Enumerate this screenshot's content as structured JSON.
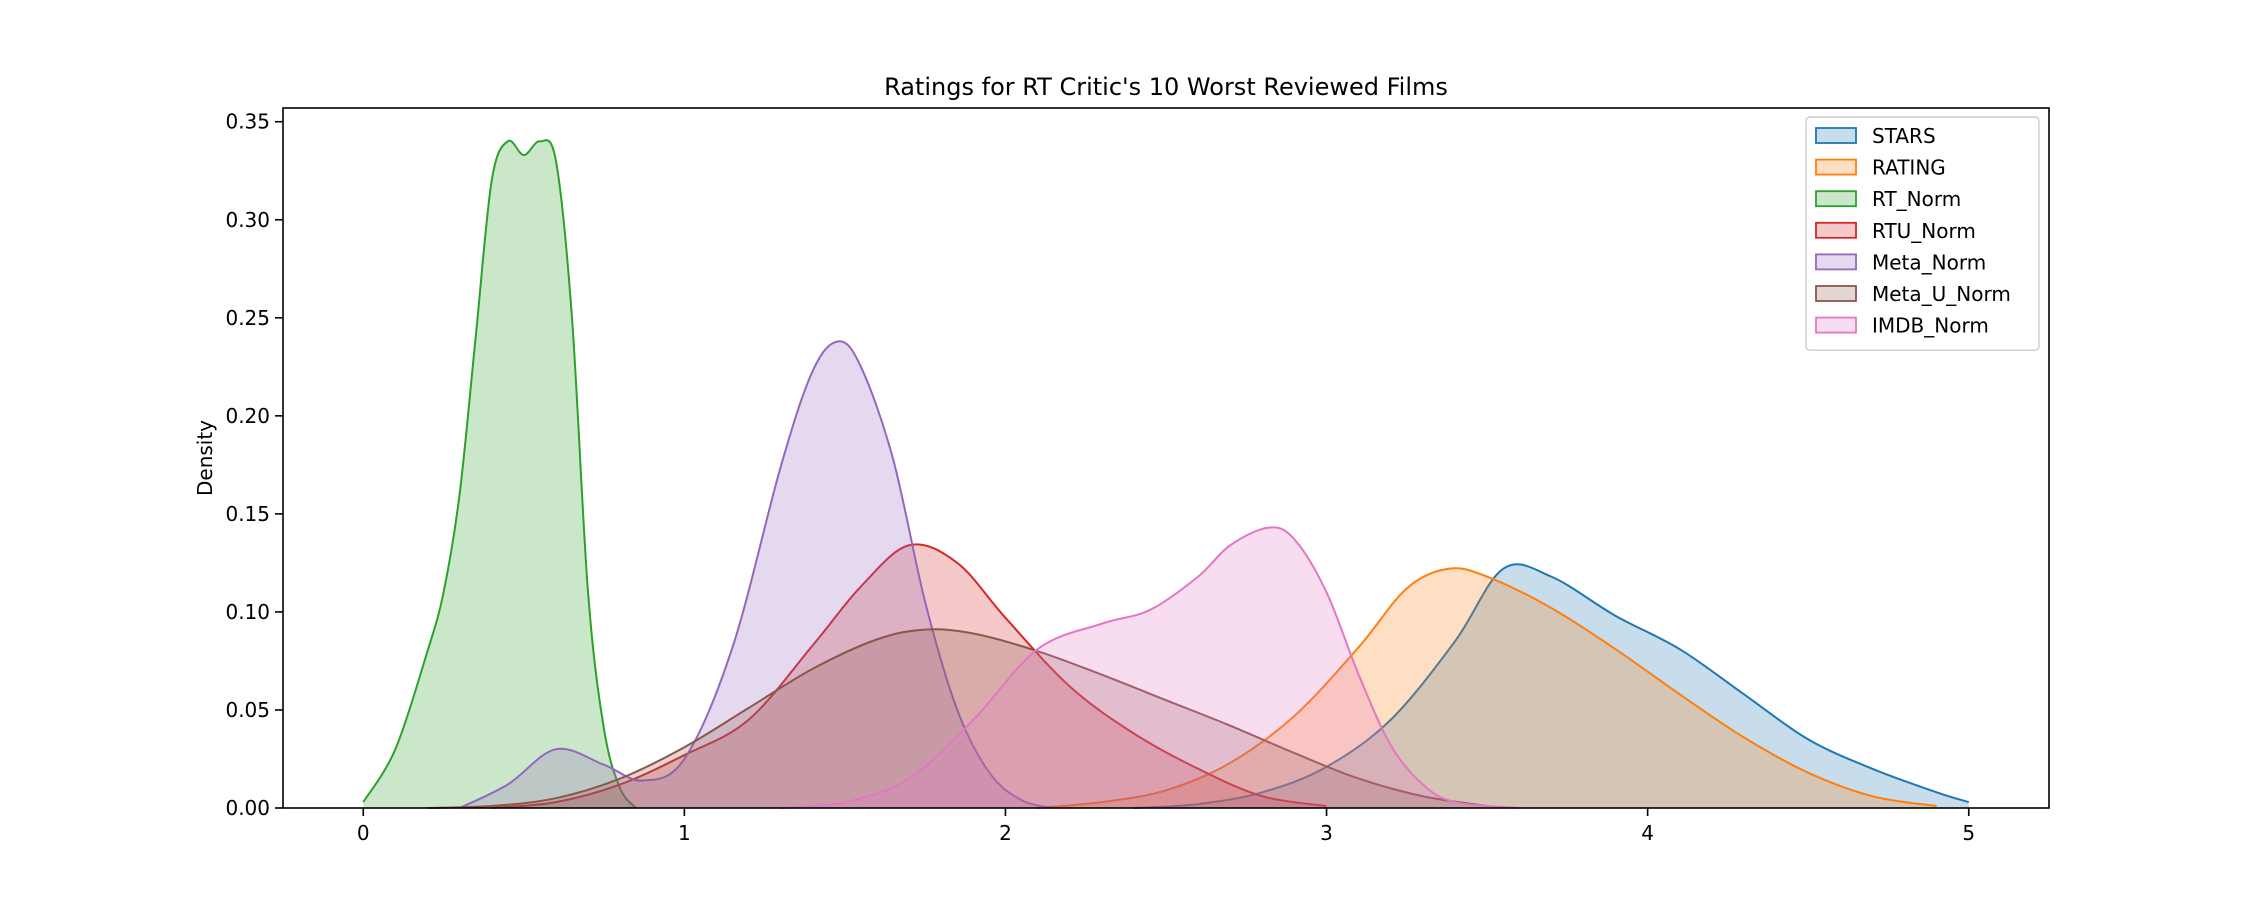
{
  "chart_data": {
    "type": "area",
    "title": "Ratings for RT Critic's 10 Worst Reviewed Films",
    "xlabel": "",
    "ylabel": "Density",
    "xlim": [
      -0.25,
      5.25
    ],
    "ylim": [
      0,
      0.357
    ],
    "xticks": [
      0,
      1,
      2,
      3,
      4,
      5
    ],
    "yticks": [
      0.0,
      0.05,
      0.1,
      0.15,
      0.2,
      0.25,
      0.3,
      0.35
    ],
    "ytick_labels": [
      "0.00",
      "0.05",
      "0.10",
      "0.15",
      "0.20",
      "0.25",
      "0.30",
      "0.35"
    ],
    "grid": false,
    "legend_position": "top-right",
    "series": [
      {
        "name": "STARS",
        "color": "#1f77b4",
        "x": [
          2.4,
          2.6,
          2.8,
          3.0,
          3.2,
          3.4,
          3.55,
          3.7,
          3.9,
          4.1,
          4.3,
          4.5,
          4.7,
          4.9,
          5.0
        ],
        "y": [
          0,
          0.002,
          0.008,
          0.021,
          0.045,
          0.085,
          0.122,
          0.118,
          0.098,
          0.081,
          0.058,
          0.035,
          0.02,
          0.008,
          0.003
        ]
      },
      {
        "name": "RATING",
        "color": "#ff7f0e",
        "x": [
          2.1,
          2.3,
          2.5,
          2.7,
          2.9,
          3.1,
          3.25,
          3.38,
          3.5,
          3.7,
          3.9,
          4.1,
          4.3,
          4.5,
          4.7,
          4.9
        ],
        "y": [
          0,
          0.003,
          0.009,
          0.023,
          0.047,
          0.082,
          0.112,
          0.122,
          0.118,
          0.102,
          0.081,
          0.058,
          0.036,
          0.018,
          0.006,
          0.001
        ]
      },
      {
        "name": "RT_Norm",
        "color": "#2ca02c",
        "x": [
          0,
          0.1,
          0.2,
          0.25,
          0.3,
          0.35,
          0.4,
          0.45,
          0.5,
          0.55,
          0.6,
          0.65,
          0.7,
          0.75,
          0.8,
          0.85
        ],
        "y": [
          0.003,
          0.03,
          0.08,
          0.11,
          0.16,
          0.24,
          0.32,
          0.34,
          0.333,
          0.34,
          0.33,
          0.25,
          0.11,
          0.04,
          0.01,
          0
        ]
      },
      {
        "name": "RTU_Norm",
        "color": "#d62728",
        "x": [
          0.4,
          0.6,
          0.8,
          1.0,
          1.2,
          1.4,
          1.55,
          1.7,
          1.85,
          2.0,
          2.2,
          2.4,
          2.6,
          2.8,
          3.0
        ],
        "y": [
          0,
          0.003,
          0.012,
          0.027,
          0.045,
          0.083,
          0.113,
          0.134,
          0.125,
          0.097,
          0.062,
          0.038,
          0.02,
          0.006,
          0.001
        ]
      },
      {
        "name": "Meta_Norm",
        "color": "#9467bd",
        "x": [
          0.3,
          0.45,
          0.6,
          0.75,
          0.87,
          1.0,
          1.15,
          1.3,
          1.4,
          1.48,
          1.55,
          1.65,
          1.75,
          1.85,
          1.95,
          2.05,
          2.15
        ],
        "y": [
          0,
          0.012,
          0.03,
          0.022,
          0.014,
          0.025,
          0.082,
          0.174,
          0.223,
          0.238,
          0.225,
          0.178,
          0.105,
          0.05,
          0.018,
          0.004,
          0
        ]
      },
      {
        "name": "Meta_U_Norm",
        "color": "#8c564b",
        "x": [
          0.2,
          0.4,
          0.6,
          0.8,
          1.0,
          1.2,
          1.4,
          1.6,
          1.75,
          1.9,
          2.1,
          2.3,
          2.5,
          2.7,
          2.9,
          3.1,
          3.3,
          3.5
        ],
        "y": [
          0,
          0.001,
          0.005,
          0.015,
          0.031,
          0.051,
          0.071,
          0.086,
          0.091,
          0.089,
          0.08,
          0.068,
          0.055,
          0.042,
          0.028,
          0.015,
          0.006,
          0.001
        ]
      },
      {
        "name": "IMDB_Norm",
        "color": "#e377c2",
        "x": [
          1.3,
          1.5,
          1.7,
          1.9,
          2.1,
          2.3,
          2.45,
          2.6,
          2.7,
          2.82,
          2.9,
          3.0,
          3.1,
          3.2,
          3.3,
          3.4,
          3.6
        ],
        "y": [
          0,
          0.003,
          0.015,
          0.045,
          0.081,
          0.094,
          0.101,
          0.118,
          0.134,
          0.143,
          0.137,
          0.11,
          0.068,
          0.032,
          0.012,
          0.003,
          0
        ]
      }
    ]
  }
}
